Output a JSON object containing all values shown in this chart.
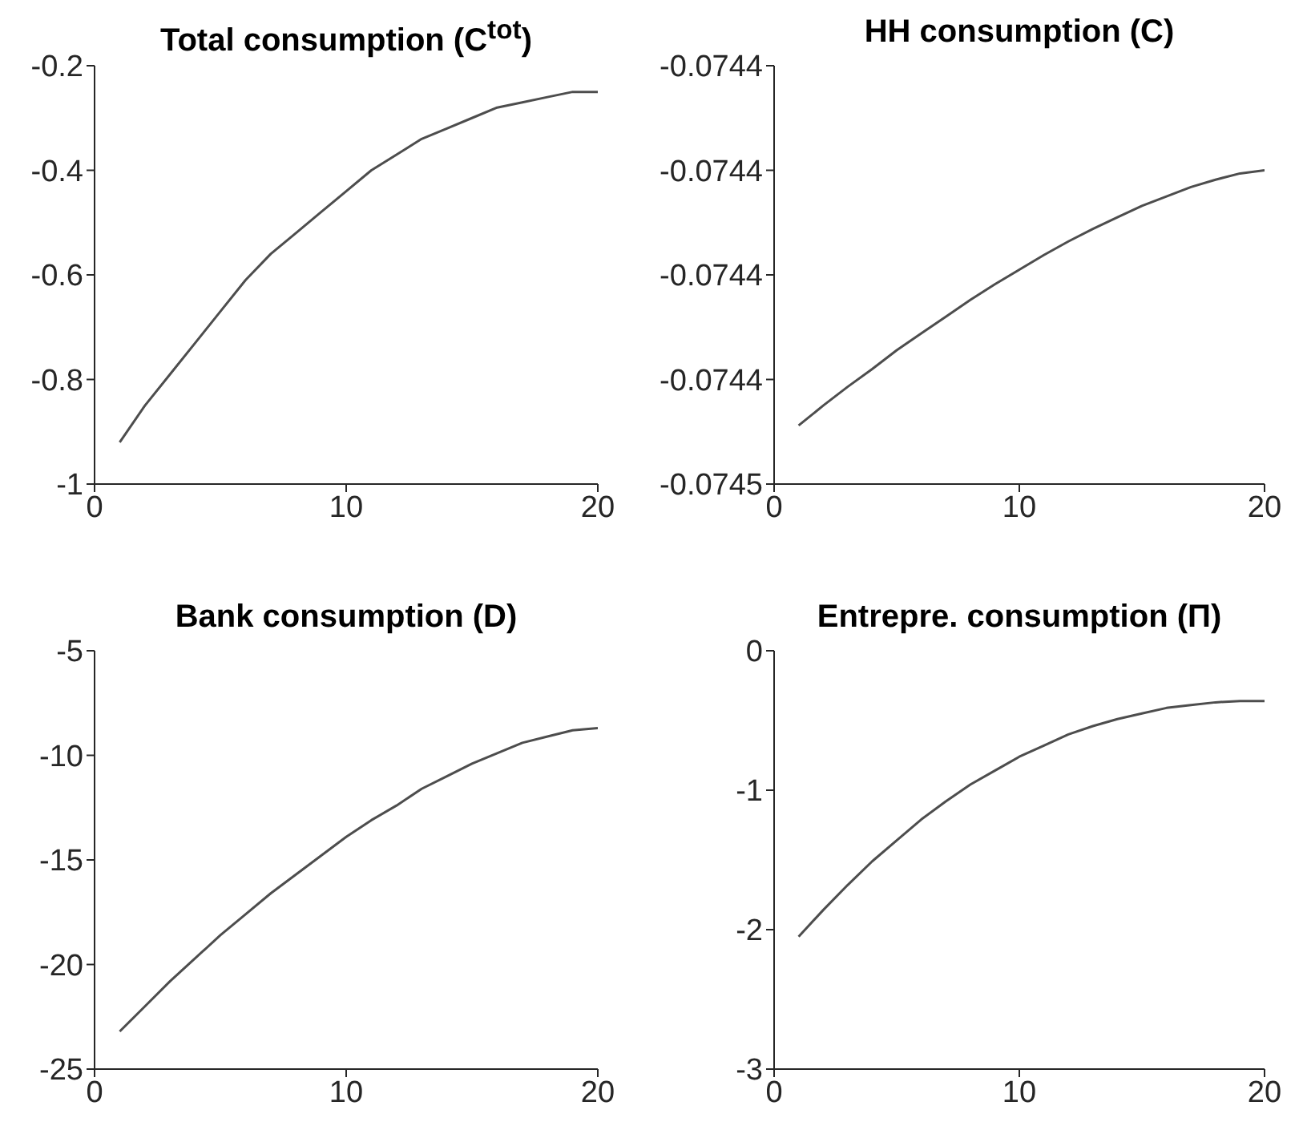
{
  "chart_data": [
    {
      "type": "line",
      "title": "Total consumption (C$^{tot}$)",
      "x": [
        1,
        2,
        3,
        4,
        5,
        6,
        7,
        8,
        9,
        10,
        11,
        12,
        13,
        14,
        15,
        16,
        17,
        18,
        19,
        20
      ],
      "xlim": [
        0,
        20
      ],
      "xticks": [
        0,
        10,
        20
      ],
      "ylim": [
        -1,
        -0.2
      ],
      "yticks": [
        -1,
        -0.8,
        -0.6,
        -0.4,
        -0.2
      ],
      "series": [
        {
          "color": "#4d4d4d",
          "values": [
            -0.92,
            -0.85,
            -0.79,
            -0.73,
            -0.67,
            -0.61,
            -0.56,
            -0.52,
            -0.48,
            -0.44,
            -0.4,
            -0.37,
            -0.34,
            -0.32,
            -0.3,
            -0.28,
            -0.27,
            -0.26,
            -0.25,
            -0.25
          ]
        }
      ]
    },
    {
      "type": "line",
      "title": "HH consumption (C)",
      "x": [
        1,
        2,
        3,
        4,
        5,
        6,
        7,
        8,
        9,
        10,
        11,
        12,
        13,
        14,
        15,
        16,
        17,
        18,
        19,
        20
      ],
      "xlim": [
        0,
        20
      ],
      "xticks": [
        0,
        10,
        20
      ],
      "ylim": [
        -0.07445,
        -0.07441
      ],
      "yticks": [
        {
          "value": -0.07445,
          "label": "-0.0745"
        },
        {
          "value": -0.07444,
          "label": "-0.0744"
        },
        {
          "value": -0.07443,
          "label": "-0.0744"
        },
        {
          "value": -0.07442,
          "label": "-0.0744"
        },
        {
          "value": -0.07441,
          "label": "-0.0744"
        }
      ],
      "series": [
        {
          "color": "#4d4d4d",
          "values": [
            -0.0744444,
            -0.0744425,
            -0.0744407,
            -0.074439,
            -0.0744372,
            -0.0744356,
            -0.074434,
            -0.0744324,
            -0.0744309,
            -0.0744295,
            -0.0744281,
            -0.0744268,
            -0.0744256,
            -0.0744245,
            -0.0744234,
            -0.0744225,
            -0.0744216,
            -0.0744209,
            -0.0744203,
            -0.07442
          ]
        }
      ]
    },
    {
      "type": "line",
      "title": "Bank consumption (D)",
      "x": [
        1,
        2,
        3,
        4,
        5,
        6,
        7,
        8,
        9,
        10,
        11,
        12,
        13,
        14,
        15,
        16,
        17,
        18,
        19,
        20
      ],
      "xlim": [
        0,
        20
      ],
      "xticks": [
        0,
        10,
        20
      ],
      "ylim": [
        -25,
        -5
      ],
      "yticks": [
        -25,
        -20,
        -15,
        -10,
        -5
      ],
      "series": [
        {
          "color": "#4d4d4d",
          "values": [
            -23.2,
            -22,
            -20.8,
            -19.7,
            -18.6,
            -17.6,
            -16.6,
            -15.7,
            -14.8,
            -13.9,
            -13.1,
            -12.4,
            -11.6,
            -11,
            -10.4,
            -9.9,
            -9.4,
            -9.1,
            -8.8,
            -8.7
          ]
        }
      ]
    },
    {
      "type": "line",
      "title": "Entrepre. consumption (Π)",
      "x": [
        1,
        2,
        3,
        4,
        5,
        6,
        7,
        8,
        9,
        10,
        11,
        12,
        13,
        14,
        15,
        16,
        17,
        18,
        19,
        20
      ],
      "xlim": [
        0,
        20
      ],
      "xticks": [
        0,
        10,
        20
      ],
      "ylim": [
        -3,
        0
      ],
      "yticks": [
        -3,
        -2,
        -1,
        0
      ],
      "series": [
        {
          "color": "#4d4d4d",
          "values": [
            -2.05,
            -1.86,
            -1.68,
            -1.51,
            -1.36,
            -1.21,
            -1.08,
            -0.96,
            -0.86,
            -0.76,
            -0.68,
            -0.6,
            -0.54,
            -0.49,
            -0.45,
            -0.41,
            -0.39,
            -0.37,
            -0.36,
            -0.36
          ]
        }
      ]
    }
  ]
}
